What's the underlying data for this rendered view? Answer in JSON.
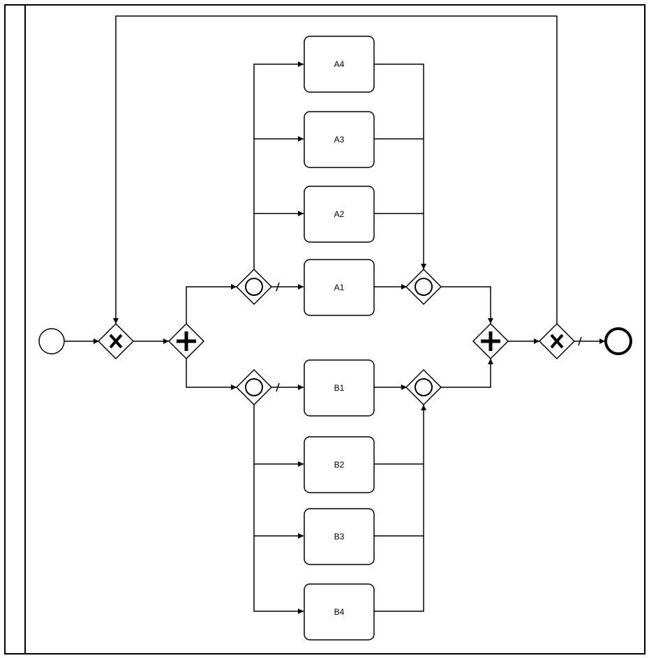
{
  "diagram": {
    "lane_label": "",
    "tasks": {
      "a4": "A4",
      "a3": "A3",
      "a2": "A2",
      "a1": "A1",
      "b1": "B1",
      "b2": "B2",
      "b3": "B3",
      "b4": "B4"
    },
    "colors": {
      "stroke": "#000000",
      "fill": "#ffffff"
    }
  }
}
